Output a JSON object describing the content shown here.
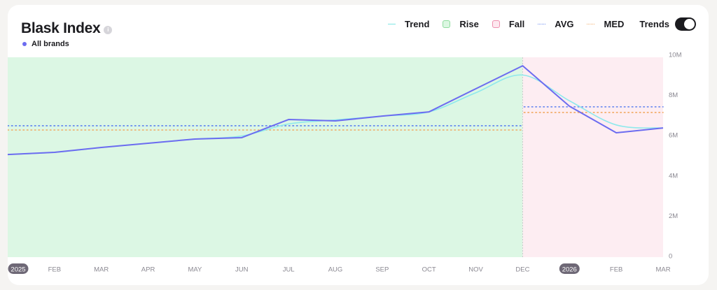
{
  "header": {
    "title": "Blask Index",
    "info_icon": "info-icon",
    "series_label": "All brands",
    "series_color": "#6c6cf0"
  },
  "legend": {
    "items": [
      {
        "label": "Trend",
        "kind": "line",
        "color": "#7ee6e4"
      },
      {
        "label": "Rise",
        "kind": "box",
        "color": "#8fdc9e",
        "fill": "#dcf7e2"
      },
      {
        "label": "Fall",
        "kind": "box",
        "color": "#ee8fae",
        "fill": "#fde8ef"
      },
      {
        "label": "AVG",
        "kind": "dotted",
        "color": "#6f8ff0"
      },
      {
        "label": "MED",
        "kind": "dotted",
        "color": "#f2b070"
      }
    ],
    "toggle_label": "Trends",
    "toggle_on": true
  },
  "colors": {
    "line": "#6c6cf0",
    "trend": "#8ee9ec",
    "rise_bg": "#dcf7e4",
    "fall_bg": "#fdedf2",
    "avg": "#5b7ff0",
    "med": "#f2a860",
    "divider": "#c9c9cc"
  },
  "chart_data": {
    "type": "line",
    "title": "Blask Index",
    "series": [
      {
        "name": "All brands",
        "values": [
          5.03,
          5.14,
          5.38,
          5.59,
          5.8,
          5.87,
          6.77,
          6.7,
          6.94,
          7.15,
          8.3,
          9.44,
          7.43,
          6.11,
          6.35
        ]
      },
      {
        "name": "Trend",
        "values": [
          5.03,
          5.14,
          5.38,
          5.59,
          5.8,
          5.95,
          6.55,
          6.75,
          6.94,
          7.15,
          8.1,
          8.98,
          7.7,
          6.5,
          6.35
        ]
      }
    ],
    "x": [
      "2025",
      "FEB",
      "MAR",
      "APR",
      "MAY",
      "JUN",
      "JUL",
      "AUG",
      "SEP",
      "OCT",
      "NOV",
      "DEC",
      "2026",
      "FEB",
      "MAR"
    ],
    "year_markers": [
      "2025",
      "2026"
    ],
    "regions": [
      {
        "type": "Rise",
        "from": "2025",
        "to": "DEC",
        "avg": 6.46,
        "med": 6.25
      },
      {
        "type": "Fall",
        "from": "DEC",
        "to": "MAR",
        "avg": 7.4,
        "med": 7.12
      }
    ],
    "ylabel": "",
    "xlabel": "",
    "ylim": [
      0,
      10
    ],
    "yticks": [
      "0",
      "2M",
      "4M",
      "6M",
      "8M",
      "10M"
    ],
    "y_unit": "M",
    "grid": false,
    "legend_position": "top-right"
  }
}
